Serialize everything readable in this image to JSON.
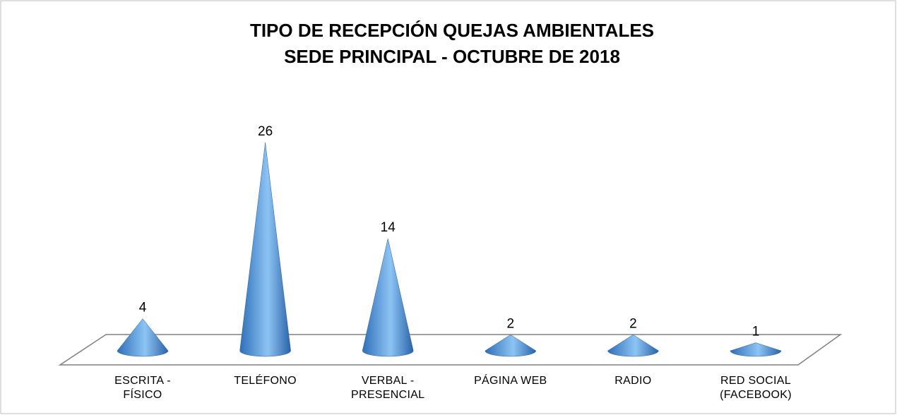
{
  "chart_data": {
    "type": "cone",
    "title": "TIPO DE RECEPCIÓN QUEJAS AMBIENTALES",
    "subtitle": "SEDE PRINCIPAL - OCTUBRE DE 2018",
    "categories": [
      "ESCRITA - FÍSICO",
      "TELÉFONO",
      "VERBAL - PRESENCIAL",
      "PÁGINA WEB",
      "RADIO",
      "RED SOCIAL (FACEBOOK)"
    ],
    "values": [
      4,
      26,
      14,
      2,
      2,
      1
    ],
    "color": "#4f8fd6"
  }
}
